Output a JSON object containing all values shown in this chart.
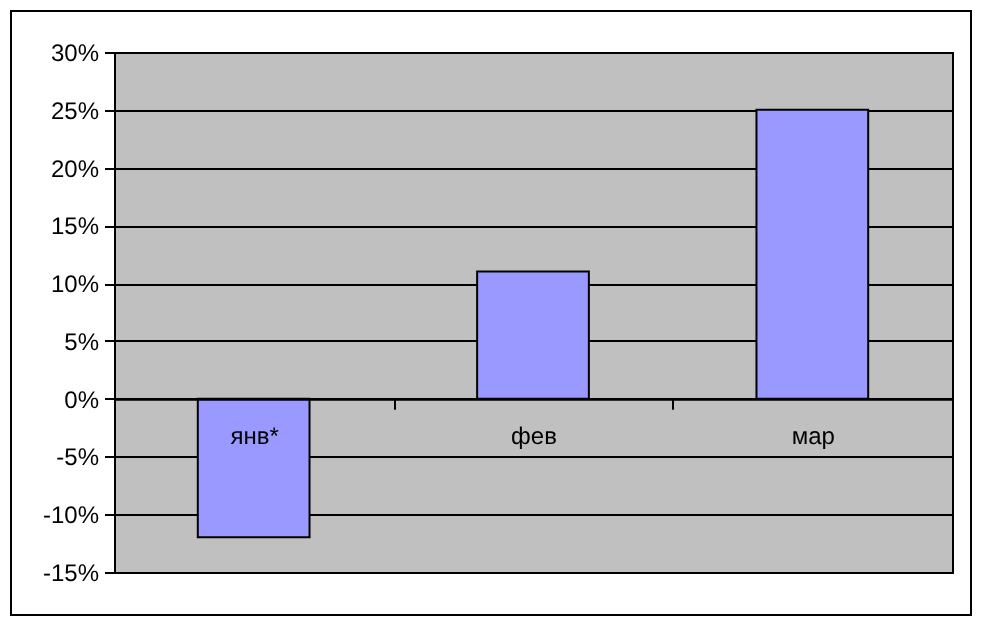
{
  "chart_data": {
    "type": "bar",
    "categories": [
      "янв*",
      "фев",
      "мар"
    ],
    "values": [
      -12,
      11,
      25
    ],
    "color": "#9999ff",
    "ylim": [
      -15,
      30
    ],
    "yticks": [
      {
        "value": -15,
        "label": "-15%"
      },
      {
        "value": -10,
        "label": "-10%"
      },
      {
        "value": -5,
        "label": "-5%"
      },
      {
        "value": 0,
        "label": "0%"
      },
      {
        "value": 5,
        "label": "5%"
      },
      {
        "value": 10,
        "label": "10%"
      },
      {
        "value": 15,
        "label": "15%"
      },
      {
        "value": 20,
        "label": "20%"
      },
      {
        "value": 25,
        "label": "25%"
      },
      {
        "value": 30,
        "label": "30%"
      }
    ],
    "grid": "y"
  }
}
